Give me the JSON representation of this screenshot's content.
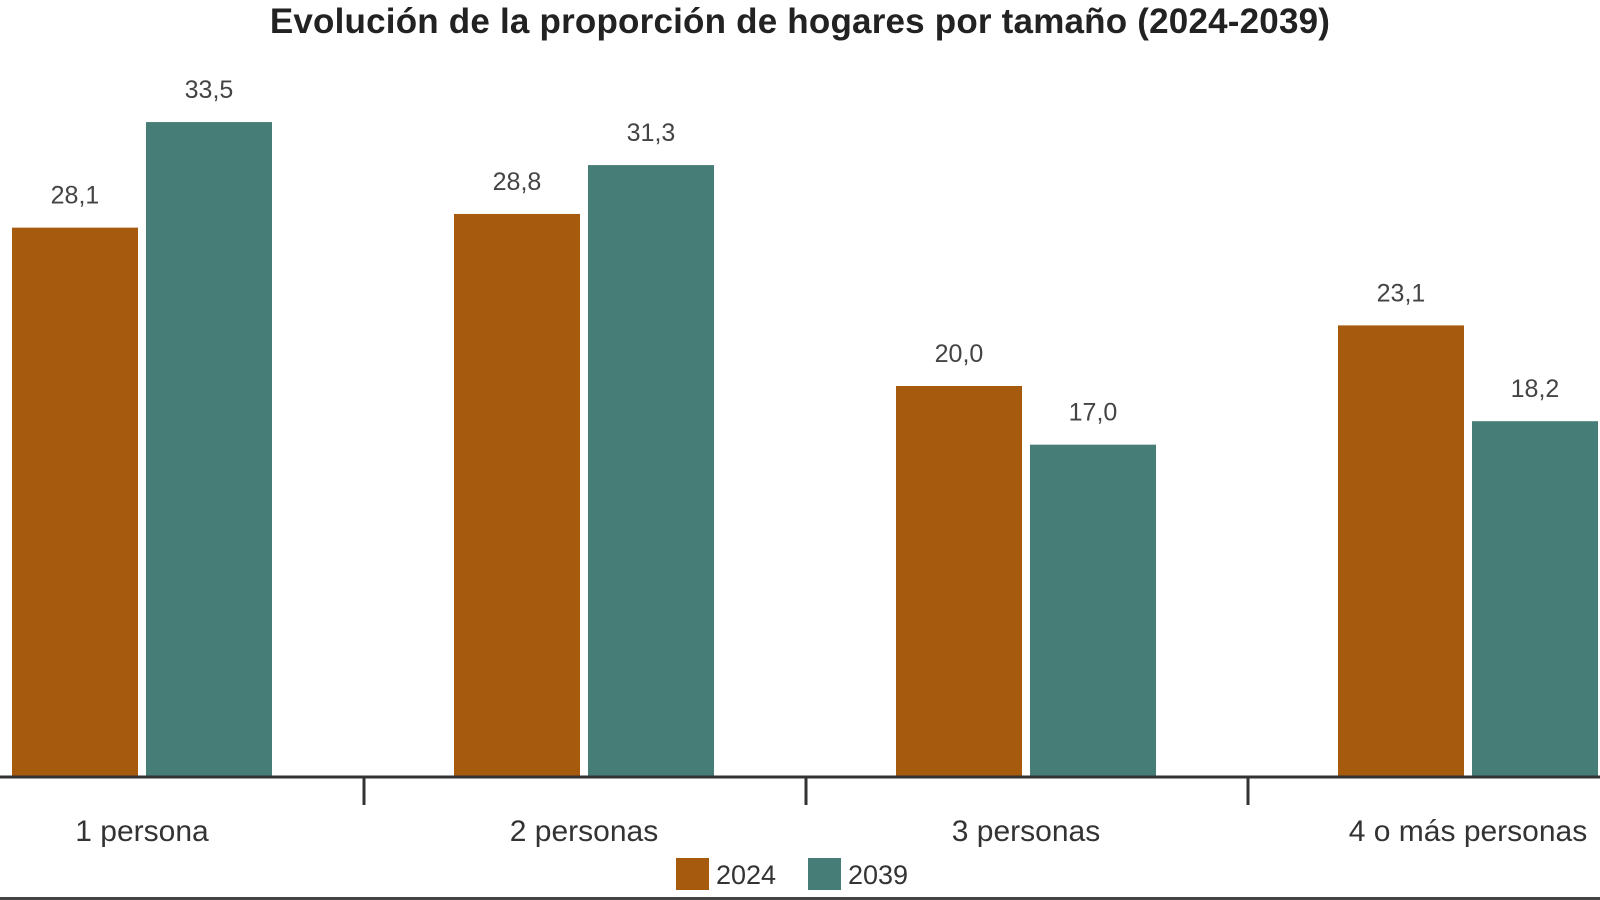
{
  "chart_data": {
    "type": "bar",
    "title": "Evolución de la proporción de hogares por tamaño (2024-2039)",
    "categories": [
      "1 persona",
      "2 personas",
      "3 personas",
      "4 o más personas"
    ],
    "series": [
      {
        "name": "2024",
        "color": "#A65A0E",
        "values": [
          28.1,
          28.8,
          20.0,
          23.1
        ],
        "labels": [
          "28,1",
          "28,8",
          "20,0",
          "23,1"
        ]
      },
      {
        "name": "2039",
        "color": "#467E77",
        "values": [
          33.5,
          31.3,
          17.0,
          18.2
        ],
        "labels": [
          "33,5",
          "31,3",
          "17,0",
          "18,2"
        ]
      }
    ],
    "ylim": [
      0,
      40
    ],
    "grid": false,
    "legend": "bottom-center"
  }
}
